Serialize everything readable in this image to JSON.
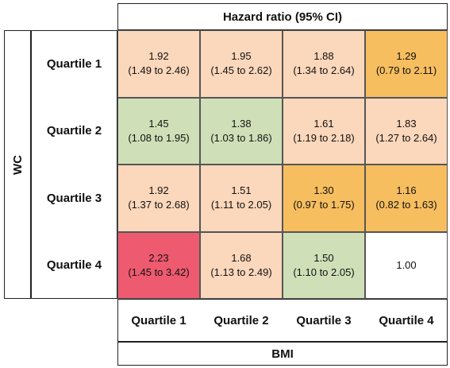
{
  "chart_data": {
    "type": "heatmap",
    "title": "Hazard ratio (95% CI)",
    "xlabel": "BMI",
    "ylabel": "WC",
    "x_categories": [
      "Quartile 1",
      "Quartile 2",
      "Quartile 3",
      "Quartile 4"
    ],
    "y_categories": [
      "Quartile 1",
      "Quartile 2",
      "Quartile 3",
      "Quartile 4"
    ],
    "cells": [
      [
        {
          "hr": "1.92",
          "ci": "(1.49 to 2.46)",
          "color": "#fbd7bb"
        },
        {
          "hr": "1.95",
          "ci": "(1.45 to 2.62)",
          "color": "#fbd7bb"
        },
        {
          "hr": "1.88",
          "ci": "(1.34 to 2.64)",
          "color": "#fbd7bb"
        },
        {
          "hr": "1.29",
          "ci": "(0.79 to 2.11)",
          "color": "#f7be60"
        }
      ],
      [
        {
          "hr": "1.45",
          "ci": "(1.08 to 1.95)",
          "color": "#cfe0b8"
        },
        {
          "hr": "1.38",
          "ci": "(1.03 to 1.86)",
          "color": "#cfe0b8"
        },
        {
          "hr": "1.61",
          "ci": "(1.19 to 2.18)",
          "color": "#fbd7bb"
        },
        {
          "hr": "1.83",
          "ci": "(1.27 to 2.64)",
          "color": "#fbd7bb"
        }
      ],
      [
        {
          "hr": "1.92",
          "ci": "(1.37 to 2.68)",
          "color": "#fbd7bb"
        },
        {
          "hr": "1.51",
          "ci": "(1.11 to 2.05)",
          "color": "#fbd7bb"
        },
        {
          "hr": "1.30",
          "ci": "(0.97 to 1.75)",
          "color": "#f7be60"
        },
        {
          "hr": "1.16",
          "ci": "(0.82 to 1.63)",
          "color": "#f7be60"
        }
      ],
      [
        {
          "hr": "2.23",
          "ci": "(1.45 to 3.42)",
          "color": "#ee5a6f"
        },
        {
          "hr": "1.68",
          "ci": "(1.13 to 2.49)",
          "color": "#fbd7bb"
        },
        {
          "hr": "1.50",
          "ci": "(1.10 to 2.05)",
          "color": "#cfe0b8"
        },
        {
          "hr": "1.00",
          "ci": "",
          "color": "#ffffff"
        }
      ]
    ]
  }
}
